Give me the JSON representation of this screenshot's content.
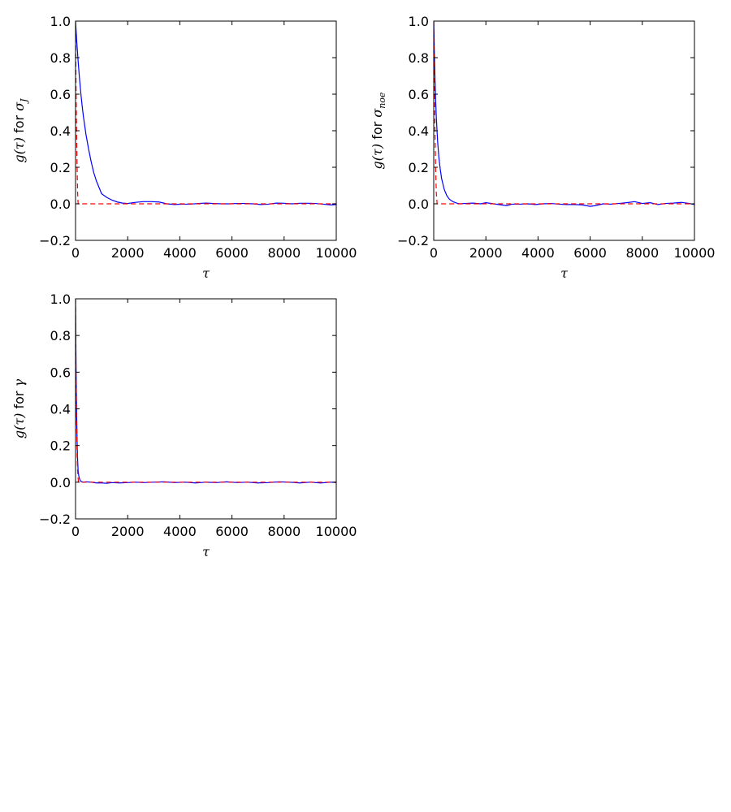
{
  "colors": {
    "acf": "#0000ff",
    "exp_fit": "#ff0000",
    "frame": "#000000"
  },
  "chart_data": [
    {
      "type": "line",
      "xlabel": "τ",
      "ylabel": {
        "prefix": "g(τ)",
        "mid": " for ",
        "var": "σ",
        "sub": "J"
      },
      "xlim": [
        0,
        10000
      ],
      "ylim": [
        -0.2,
        1.0
      ],
      "xticks": [
        "0",
        "2000",
        "4000",
        "6000",
        "8000",
        "10000"
      ],
      "yticks": [
        "−0.2",
        "0.0",
        "0.2",
        "0.4",
        "0.6",
        "0.8",
        "1.0"
      ],
      "grid": false,
      "series": [
        {
          "style": "solid-blue",
          "x": [
            0,
            50,
            100,
            150,
            200,
            250,
            300,
            400,
            500,
            600,
            700,
            800,
            900,
            1000,
            1200,
            1400,
            1600,
            1800,
            2000,
            2300,
            2600,
            2900,
            3200,
            3500,
            3800,
            4100,
            4400,
            4700,
            5000,
            5300,
            5600,
            5900,
            6200,
            6500,
            6800,
            7100,
            7400,
            7700,
            8000,
            8300,
            8600,
            8900,
            9200,
            9500,
            9800,
            10000
          ],
          "values": [
            1.0,
            0.88,
            0.78,
            0.69,
            0.61,
            0.54,
            0.48,
            0.38,
            0.3,
            0.23,
            0.17,
            0.125,
            0.09,
            0.055,
            0.035,
            0.02,
            0.01,
            0.004,
            0.002,
            0.008,
            0.012,
            0.012,
            0.01,
            0.0,
            -0.004,
            -0.002,
            -0.002,
            0.002,
            0.004,
            0.002,
            0.0,
            0.0,
            0.002,
            0.002,
            0.0,
            -0.004,
            -0.002,
            0.004,
            0.003,
            0.0,
            0.003,
            0.003,
            0.002,
            -0.002,
            -0.006,
            -0.004
          ]
        },
        {
          "style": "dashed-red",
          "x": [
            0,
            20,
            40,
            60,
            80,
            100,
            10000
          ],
          "values": [
            1.0,
            0.62,
            0.38,
            0.2,
            0.06,
            0.0,
            0.0
          ]
        }
      ]
    },
    {
      "type": "line",
      "xlabel": "τ",
      "ylabel": {
        "prefix": "g(τ)",
        "mid": " for ",
        "var": "σ",
        "sub": "noe"
      },
      "xlim": [
        0,
        10000
      ],
      "ylim": [
        -0.2,
        1.0
      ],
      "xticks": [
        "0",
        "2000",
        "4000",
        "6000",
        "8000",
        "10000"
      ],
      "yticks": [
        "−0.2",
        "0.0",
        "0.2",
        "0.4",
        "0.6",
        "0.8",
        "1.0"
      ],
      "grid": false,
      "series": [
        {
          "style": "solid-blue",
          "x": [
            0,
            25,
            50,
            75,
            100,
            150,
            200,
            250,
            300,
            400,
            500,
            600,
            700,
            800,
            900,
            1000,
            1200,
            1500,
            1800,
            2000,
            2300,
            2600,
            2800,
            3000,
            3300,
            3600,
            3900,
            4200,
            4500,
            4800,
            5100,
            5400,
            5700,
            6000,
            6200,
            6500,
            6800,
            7100,
            7400,
            7700,
            8000,
            8300,
            8600,
            8900,
            9200,
            9500,
            9800,
            10000
          ],
          "values": [
            1.0,
            0.82,
            0.68,
            0.56,
            0.47,
            0.34,
            0.25,
            0.19,
            0.14,
            0.08,
            0.045,
            0.025,
            0.015,
            0.008,
            0.003,
            0.0,
            0.002,
            0.004,
            0.0,
            0.006,
            0.0,
            -0.006,
            -0.01,
            -0.002,
            -0.002,
            0.0,
            -0.004,
            0.0,
            0.002,
            -0.002,
            -0.004,
            -0.004,
            -0.006,
            -0.014,
            -0.01,
            0.0,
            -0.002,
            0.002,
            0.006,
            0.012,
            0.002,
            0.006,
            -0.004,
            0.002,
            0.004,
            0.008,
            0.002,
            -0.004
          ]
        },
        {
          "style": "dashed-red",
          "x": [
            0,
            20,
            40,
            60,
            80,
            100,
            130,
            10000
          ],
          "values": [
            1.0,
            0.7,
            0.47,
            0.3,
            0.16,
            0.06,
            0.0,
            0.0
          ]
        }
      ]
    },
    {
      "type": "line",
      "xlabel": "τ",
      "ylabel": {
        "prefix": "g(τ)",
        "mid": " for ",
        "var": "γ",
        "sub": ""
      },
      "xlim": [
        0,
        10000
      ],
      "ylim": [
        -0.2,
        1.0
      ],
      "xticks": [
        "0",
        "2000",
        "4000",
        "6000",
        "8000",
        "10000"
      ],
      "yticks": [
        "−0.2",
        "0.0",
        "0.2",
        "0.4",
        "0.6",
        "0.8",
        "1.0"
      ],
      "grid": false,
      "series": [
        {
          "style": "solid-blue",
          "x": [
            0,
            20,
            40,
            60,
            80,
            100,
            130,
            160,
            200,
            300,
            400,
            600,
            800,
            1000,
            1200,
            1400,
            1700,
            2000,
            2300,
            2600,
            3000,
            3400,
            3800,
            4200,
            4600,
            5000,
            5400,
            5800,
            6200,
            6600,
            7000,
            7400,
            7800,
            8200,
            8600,
            9000,
            9400,
            9800,
            10000
          ],
          "values": [
            1.0,
            0.62,
            0.38,
            0.22,
            0.12,
            0.06,
            0.03,
            0.015,
            0.005,
            0.0,
            0.002,
            0.0,
            -0.004,
            -0.004,
            -0.006,
            -0.002,
            -0.004,
            -0.002,
            0.0,
            -0.002,
            0.0,
            0.002,
            -0.002,
            0.0,
            -0.004,
            0.0,
            -0.002,
            0.002,
            -0.002,
            0.0,
            -0.004,
            -0.002,
            0.002,
            0.0,
            -0.004,
            0.0,
            -0.004,
            0.0,
            -0.002
          ]
        },
        {
          "style": "dashed-red",
          "x": [
            0,
            20,
            40,
            60,
            80,
            110,
            10000
          ],
          "values": [
            1.0,
            0.58,
            0.32,
            0.16,
            0.06,
            0.0,
            0.0
          ]
        }
      ]
    }
  ]
}
